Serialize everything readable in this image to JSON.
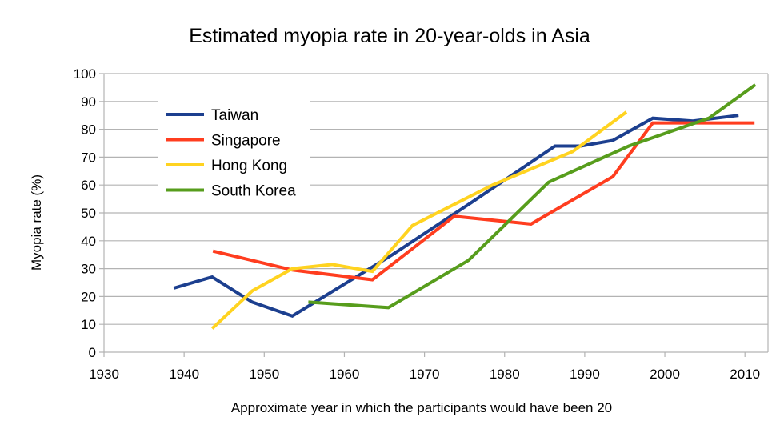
{
  "chart_data": {
    "type": "line",
    "title": "Estimated myopia rate in 20-year-olds in Asia",
    "xlabel": "Approximate year in which the participants would have been 20",
    "ylabel": "Myopia rate (%)",
    "xlim": [
      1930,
      2013
    ],
    "ylim": [
      0,
      100
    ],
    "x_ticks": [
      "1930",
      "1940",
      "1950",
      "1960",
      "1970",
      "1980",
      "1990",
      "2000",
      "2010"
    ],
    "y_ticks": [
      "0",
      "10",
      "20",
      "30",
      "40",
      "50",
      "60",
      "70",
      "80",
      "90",
      "100"
    ],
    "grid": "horizontal",
    "legend_position": "top-left",
    "series": [
      {
        "name": "Taiwan",
        "color": "#1c3f8f",
        "points": [
          [
            1938.7,
            23
          ],
          [
            1943.5,
            27
          ],
          [
            1948.5,
            18
          ],
          [
            1953.5,
            13
          ],
          [
            1966,
            35
          ],
          [
            1976,
            54
          ],
          [
            1986.3,
            74
          ],
          [
            1989.5,
            74
          ],
          [
            1993.5,
            76
          ],
          [
            1998.5,
            84
          ],
          [
            2003.5,
            83
          ],
          [
            2009.2,
            85
          ]
        ]
      },
      {
        "name": "Singapore",
        "color": "#ff3d1f",
        "points": [
          [
            1943.6,
            36.3
          ],
          [
            1953.5,
            29.5
          ],
          [
            1963.5,
            26
          ],
          [
            1973.7,
            48.8
          ],
          [
            1983.3,
            46
          ],
          [
            1993.5,
            63
          ],
          [
            1998.5,
            82.3
          ],
          [
            2011.2,
            82.3
          ]
        ]
      },
      {
        "name": "Hong Kong",
        "color": "#ffd320",
        "points": [
          [
            1943.5,
            8.5
          ],
          [
            1948.5,
            22
          ],
          [
            1953.5,
            30
          ],
          [
            1958.5,
            31.5
          ],
          [
            1963.5,
            29
          ],
          [
            1968.5,
            45.5
          ],
          [
            1978.5,
            60
          ],
          [
            1988.5,
            72
          ],
          [
            1995.2,
            86.2
          ]
        ]
      },
      {
        "name": "South Korea",
        "color": "#579d1c",
        "points": [
          [
            1955.5,
            18
          ],
          [
            1965.5,
            16
          ],
          [
            1975.5,
            33
          ],
          [
            1985.5,
            61
          ],
          [
            1995.5,
            74
          ],
          [
            2005.5,
            84
          ],
          [
            2011.3,
            96
          ]
        ]
      }
    ]
  }
}
